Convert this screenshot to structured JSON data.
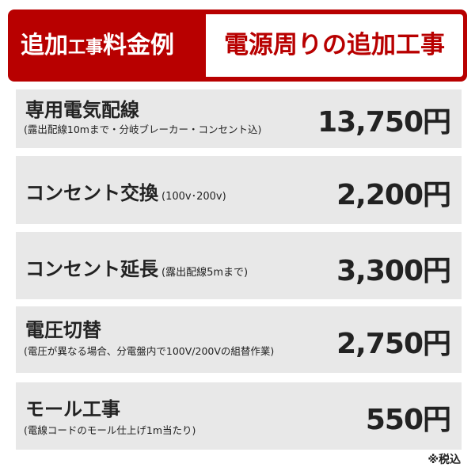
{
  "header": {
    "label_part1": "追加",
    "label_part2": "工事",
    "label_part3": "料金例",
    "title": "電源周りの追加工事",
    "brand_color": "#b80000"
  },
  "items": [
    {
      "title": "専用電気配線",
      "note": "(露出配線10mまで・分岐ブレーカー・コンセント込)",
      "price": "13,750円"
    },
    {
      "title": "コンセント交換",
      "note": "(100v･200v)",
      "price": "2,200円"
    },
    {
      "title": "コンセント延長",
      "note": "(露出配線5mまで)",
      "price": "3,300円"
    },
    {
      "title": "電圧切替",
      "note": "(電圧が異なる場合、分電盤内で100V/200Vの組替作業)",
      "price": "2,750円"
    },
    {
      "title": "モール工事",
      "note": "(電線コードのモール仕上げ1m当たり)",
      "price": "550円"
    }
  ],
  "footer": {
    "tax_note": "※税込"
  }
}
